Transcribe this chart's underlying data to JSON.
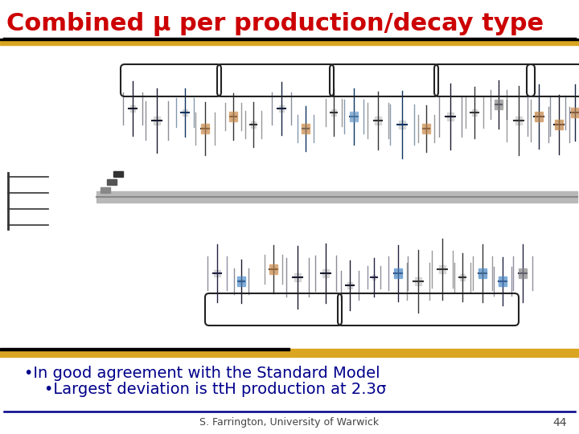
{
  "title": "Combined μ per production/decay type",
  "title_color": "#cc0000",
  "title_fontsize": 22,
  "bullet1": "•In good agreement with the Standard Model",
  "bullet2": "•Largest deviation is ttH production at 2.3σ",
  "bullet_color": "#00008B",
  "bullet_fontsize": 14,
  "footer_text": "S. Farrington, University of Warwick",
  "footer_color": "#444444",
  "footer_fontsize": 9,
  "slide_number": "44",
  "bg_color": "#ffffff",
  "gold_color": "#DAA520",
  "black_color": "#000000",
  "navy_color": "#00008B",
  "gray_bar_color": "#b0b0b0"
}
